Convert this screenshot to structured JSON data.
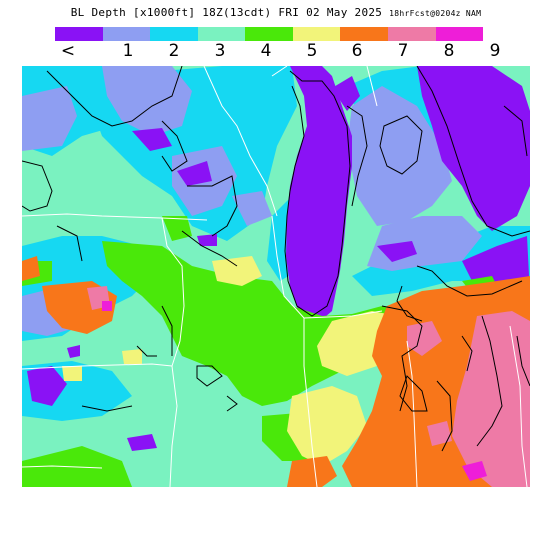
{
  "header": {
    "title": "BL Depth [x1000ft] 18Z(13cdt) FRI 02 May 2025",
    "forecast": "18hrFcst@0204z NAM"
  },
  "legend": {
    "colors": [
      "#8a12f5",
      "#8e9ef2",
      "#16d8f2",
      "#7af2c0",
      "#4ae80a",
      "#f2f47a",
      "#f8761a",
      "#ee7aa6",
      "#ee1ed8"
    ],
    "labels": [
      "<",
      "1",
      "2",
      "3",
      "4",
      "5",
      "6",
      "7",
      "8",
      "9"
    ]
  },
  "map": {
    "fields": {
      "background": "#7af2c0",
      "lt1": "#8a12f5",
      "c1": "#8e9ef2",
      "c2": "#16d8f2",
      "c3": "#7af2c0",
      "c4": "#4ae80a",
      "c5": "#f2f47a",
      "c6": "#f8761a",
      "c7": "#ee7aa6",
      "c8": "#ee1ed8"
    },
    "borders": {
      "state": "#ffffff",
      "coast": "#000000"
    }
  }
}
